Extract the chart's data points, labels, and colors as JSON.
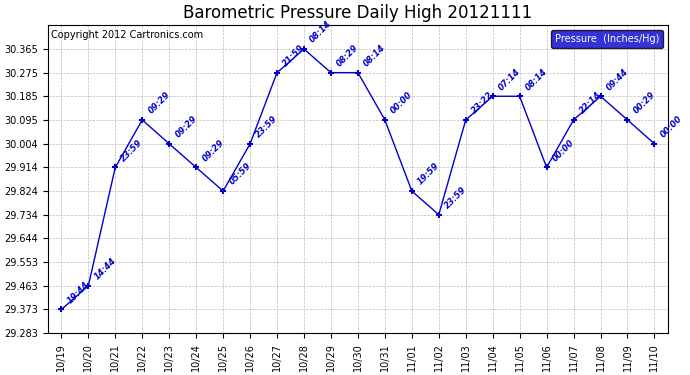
{
  "title": "Barometric Pressure Daily High 20121111",
  "copyright": "Copyright 2012 Cartronics.com",
  "legend_label": "Pressure  (Inches/Hg)",
  "dates": [
    "10/19",
    "10/20",
    "10/21",
    "10/22",
    "10/23",
    "10/24",
    "10/25",
    "10/26",
    "10/27",
    "10/28",
    "10/29",
    "10/30",
    "10/31",
    "11/01",
    "11/02",
    "11/03",
    "11/04",
    "11/05",
    "11/06",
    "11/07",
    "11/08",
    "11/09",
    "11/10"
  ],
  "values": [
    29.373,
    29.463,
    29.914,
    30.095,
    30.004,
    29.914,
    29.824,
    30.004,
    30.275,
    30.365,
    30.275,
    30.275,
    30.095,
    29.824,
    29.734,
    30.095,
    30.185,
    30.185,
    29.914,
    30.095,
    30.185,
    30.095,
    30.004
  ],
  "annotations": [
    "19:44",
    "14:44",
    "23:59",
    "09:29",
    "09:29",
    "09:29",
    "05:59",
    "23:59",
    "21:59",
    "08:14",
    "08:29",
    "08:14",
    "00:00",
    "19:59",
    "23:59",
    "23:22",
    "07:14",
    "08:14",
    "00:00",
    "22:14",
    "09:44",
    "00:29",
    "00:00"
  ],
  "xlabels": [
    "10/19",
    "10/20",
    "10/21",
    "10/22",
    "10/23",
    "10/24",
    "10/25",
    "10/26",
    "10/27",
    "10/28",
    "10/29",
    "10/30",
    "10/31",
    "11/01",
    "11/02",
    "11/03",
    "11/04",
    "11/05",
    "11/06",
    "11/07",
    "11/08",
    "11/09",
    "11/10"
  ],
  "ylim": [
    29.283,
    30.456
  ],
  "yticks": [
    29.283,
    29.373,
    29.463,
    29.553,
    29.644,
    29.734,
    29.824,
    29.914,
    30.004,
    30.095,
    30.185,
    30.275,
    30.365
  ],
  "line_color": "#0000cc",
  "background_color": "#ffffff",
  "grid_color": "#bbbbbb",
  "title_fontsize": 12,
  "annotation_fontsize": 6,
  "label_fontsize": 7,
  "copyright_fontsize": 7,
  "legend_bg_color": "#0000cc",
  "legend_text_color": "#ffffff"
}
